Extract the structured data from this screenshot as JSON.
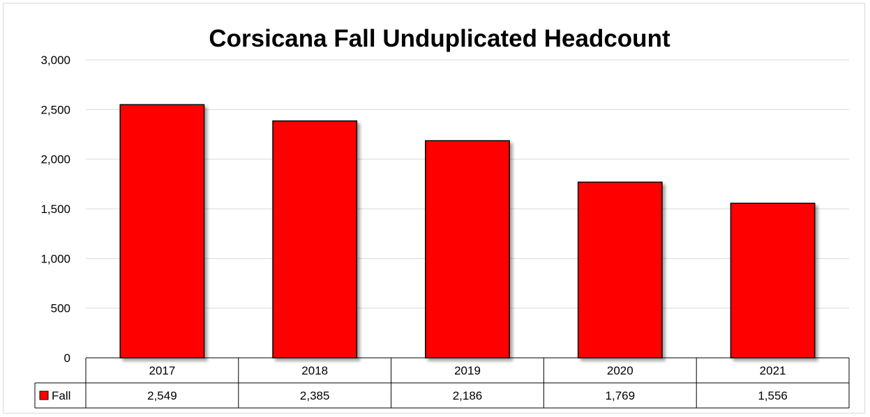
{
  "chart_data": {
    "type": "bar",
    "title": "Corsicana Fall Unduplicated Headcount",
    "categories": [
      "2017",
      "2018",
      "2019",
      "2020",
      "2021"
    ],
    "series": [
      {
        "name": "Fall",
        "values": [
          2549,
          2385,
          2186,
          1769,
          1556
        ],
        "color": "#ff0000"
      }
    ],
    "data_labels": [
      "2,549",
      "2,385",
      "2,186",
      "1,769",
      "1,556"
    ],
    "y_ticks": [
      "0",
      "500",
      "1,000",
      "1,500",
      "2,000",
      "2,500",
      "3,000"
    ],
    "ylim": [
      0,
      3000
    ],
    "ystep": 500,
    "grid": true,
    "legend": "data-table-left",
    "data_table": true,
    "colors": {
      "bar": "#ff0000",
      "bar_border": "#000000",
      "grid": "#d9d9d9"
    }
  }
}
